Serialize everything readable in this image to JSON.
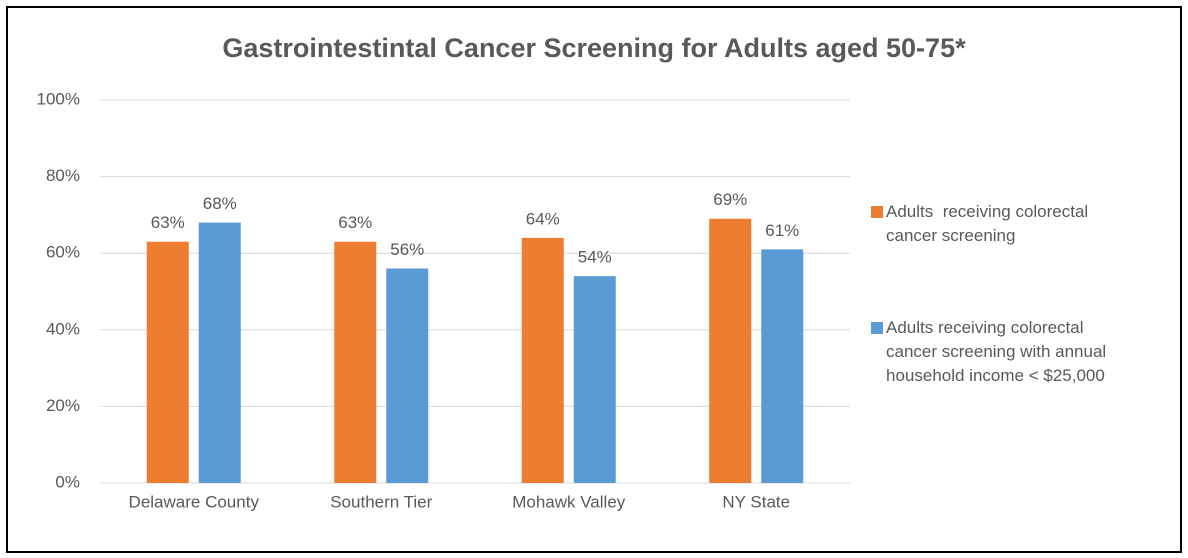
{
  "chart_data": {
    "type": "bar",
    "title": "Gastrointestintal Cancer Screening for Adults aged 50-75*",
    "categories": [
      "Delaware County",
      "Southern Tier",
      "Mohawk Valley",
      "NY State"
    ],
    "series": [
      {
        "name": "Adults  receiving colorectal cancer screening",
        "color": "#ed7d31",
        "values": [
          63,
          63,
          64,
          69
        ],
        "value_labels": [
          "63%",
          "63%",
          "64%",
          "69%"
        ]
      },
      {
        "name": "Adults receiving colorectal cancer screening with annual household income < $25,000",
        "color": "#5b9bd5",
        "values": [
          68,
          56,
          54,
          61
        ],
        "value_labels": [
          "68%",
          "56%",
          "54%",
          "61%"
        ]
      }
    ],
    "ylim": [
      0,
      100
    ],
    "yticks": [
      {
        "value": 0,
        "label": "0%"
      },
      {
        "value": 20,
        "label": "20%"
      },
      {
        "value": 40,
        "label": "40%"
      },
      {
        "value": 60,
        "label": "60%"
      },
      {
        "value": 80,
        "label": "80%"
      },
      {
        "value": 100,
        "label": "100%"
      }
    ],
    "grid": true,
    "legend": "right"
  }
}
